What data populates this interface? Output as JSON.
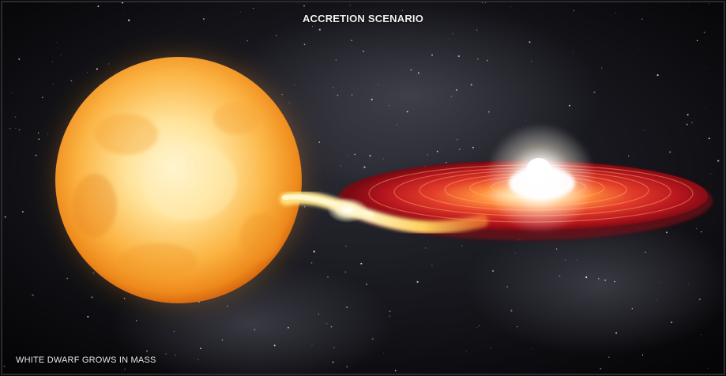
{
  "title": "ACCRETION SCENARIO",
  "caption": "WHITE DWARF GROWS IN MASS",
  "colors": {
    "background": "#050507",
    "star_core": "#fff4c8",
    "star_edge": "#f08a1e",
    "disk_outer": "#b0141e",
    "disk_inner": "#ff9a3c",
    "white_dwarf": "#ffffff"
  }
}
